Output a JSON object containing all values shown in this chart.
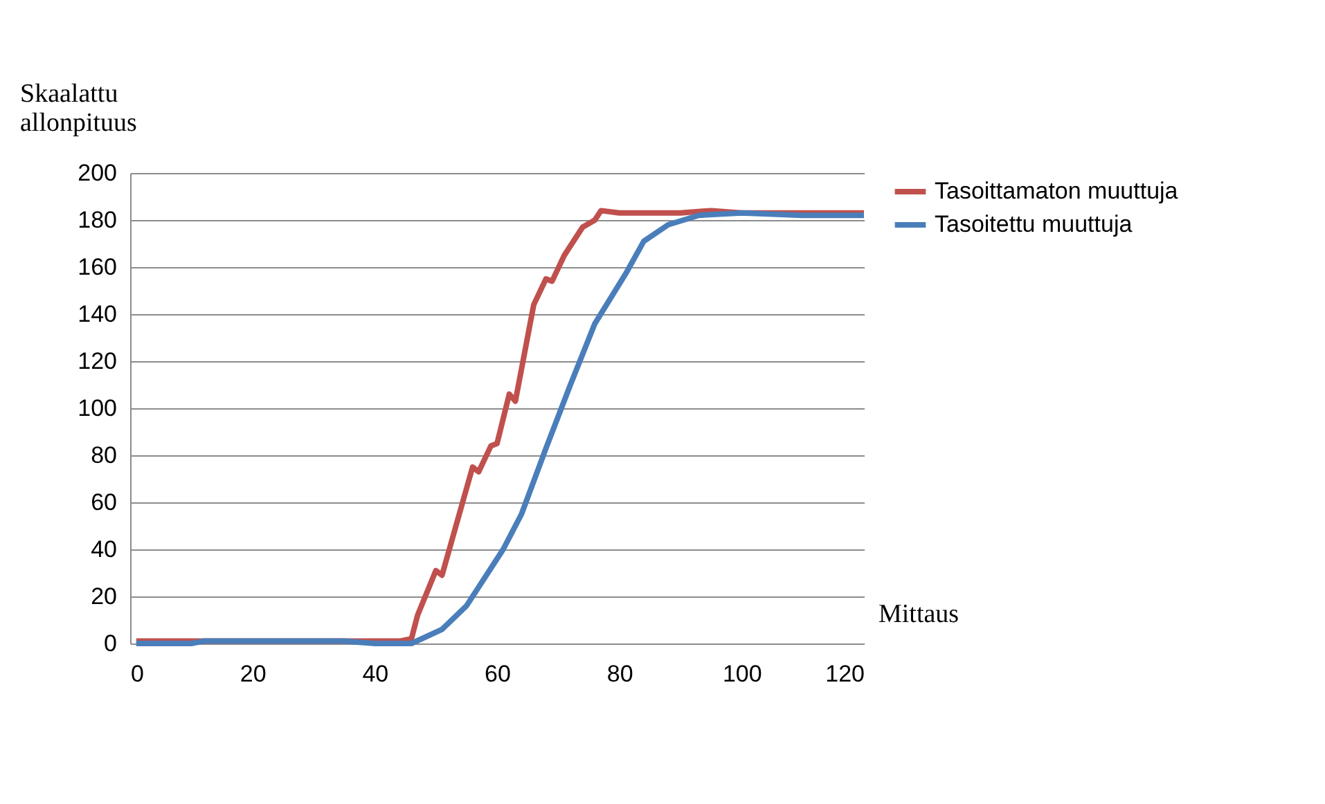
{
  "chart_data": {
    "type": "line",
    "xlabel": "Mittaus",
    "ylabel": "Skaalattu allonpituus",
    "xlim": [
      0,
      120
    ],
    "xticks": [
      0,
      20,
      40,
      60,
      80,
      100,
      120
    ],
    "ylim": [
      0,
      200
    ],
    "yticks": [
      0,
      20,
      40,
      60,
      80,
      100,
      120,
      140,
      160,
      180,
      200
    ],
    "grid": "y",
    "legend": "right",
    "marker": "none",
    "line_style": "solid",
    "series": [
      {
        "name": "Tasoittamaton muuttuja",
        "color": "#c0504d",
        "x": [
          1,
          5,
          10,
          20,
          30,
          35,
          40,
          44,
          46,
          47,
          50,
          51,
          56,
          57,
          59,
          60,
          62,
          63,
          66,
          68,
          69,
          71,
          74,
          76,
          77,
          80,
          85,
          90,
          95,
          100,
          105,
          110,
          115,
          120
        ],
        "values": [
          1,
          1,
          1,
          1,
          1,
          1,
          1,
          1,
          2,
          12,
          31,
          29,
          75,
          73,
          84,
          85,
          106,
          103,
          144,
          155,
          154,
          165,
          177,
          180,
          184,
          183,
          183,
          183,
          184,
          183,
          183,
          183,
          183,
          183
        ]
      },
      {
        "name": "Tasoitettu muuttuja",
        "color": "#4a7ebb",
        "x": [
          1,
          5,
          10,
          12,
          20,
          30,
          35,
          40,
          44,
          46,
          51,
          55,
          61,
          64,
          68,
          72,
          76,
          81,
          84,
          88,
          93,
          100,
          110,
          120
        ],
        "values": [
          0,
          0,
          0,
          1,
          1,
          1,
          1,
          0,
          0,
          0,
          6,
          16,
          40,
          55,
          83,
          110,
          136,
          157,
          171,
          178,
          182,
          183,
          182,
          182
        ]
      }
    ]
  }
}
